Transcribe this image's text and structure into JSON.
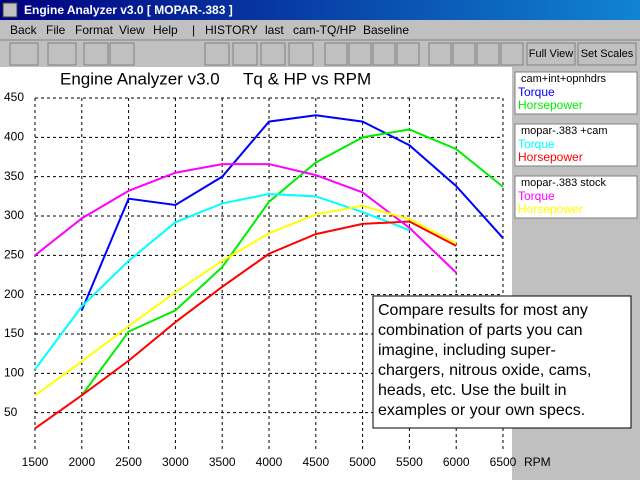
{
  "window": {
    "title": "Engine Analyzer v3.0  [ MOPAR-.383 ]",
    "menu": [
      "Back",
      "File",
      "Format",
      "View",
      "Help",
      "|",
      "HISTORY",
      "last",
      "cam-TQ/HP",
      "Baseline"
    ]
  },
  "toolbar": {
    "buttons": [
      "Full View",
      "Set Scales"
    ]
  },
  "chart_data": {
    "type": "line",
    "title": "Engine Analyzer v3.0     Tq & HP vs RPM",
    "x_label": "RPM",
    "x": [
      1500,
      2000,
      2500,
      3000,
      3500,
      4000,
      4500,
      5000,
      5500,
      6000,
      6500
    ],
    "xlim": [
      1500,
      6500
    ],
    "xticks": [
      1500,
      2000,
      2500,
      3000,
      3500,
      4000,
      4500,
      5000,
      5500,
      6000,
      6500
    ],
    "ylim": [
      0,
      450
    ],
    "yticks": [
      50,
      100,
      150,
      200,
      250,
      300,
      350,
      400,
      450
    ],
    "grid": true,
    "groups": [
      {
        "name": "cam+int+opnhdrs",
        "series": [
          {
            "name": "Torque",
            "color": "#0000ff",
            "values": [
              null,
              180,
              322,
              314,
              350,
              420,
              428,
              420,
              390,
              338,
              272
            ]
          },
          {
            "name": "Horsepower",
            "color": "#00ee00",
            "values": [
              null,
              72,
              153,
              180,
              235,
              318,
              368,
              400,
              410,
              385,
              337
            ]
          }
        ]
      },
      {
        "name": "mopar-.383 +cam",
        "series": [
          {
            "name": "Torque",
            "color": "#00ffff",
            "values": [
              105,
              185,
              243,
              292,
              316,
              328,
              325,
              305,
              282,
              null,
              null
            ]
          },
          {
            "name": "Horsepower",
            "color": "#ff0000",
            "values": [
              30,
              72,
              116,
              165,
              210,
              252,
              277,
              290,
              293,
              262,
              null
            ]
          }
        ]
      },
      {
        "name": "mopar-.383 stock",
        "series": [
          {
            "name": "Torque",
            "color": "#ff00ff",
            "values": [
              250,
              297,
              332,
              355,
              366,
              366,
              352,
              330,
              285,
              228,
              null
            ]
          },
          {
            "name": "Horsepower",
            "color": "#ffff00",
            "values": [
              72,
              115,
              160,
              203,
              243,
              278,
              302,
              313,
              296,
              265,
              null
            ]
          }
        ]
      }
    ],
    "annotation": [
      "Compare results for most any",
      "combination of parts you can",
      "imagine, including super-",
      "chargers, nitrous oxide, cams,",
      "heads, etc.  Use the built in",
      "examples or your own specs."
    ]
  }
}
